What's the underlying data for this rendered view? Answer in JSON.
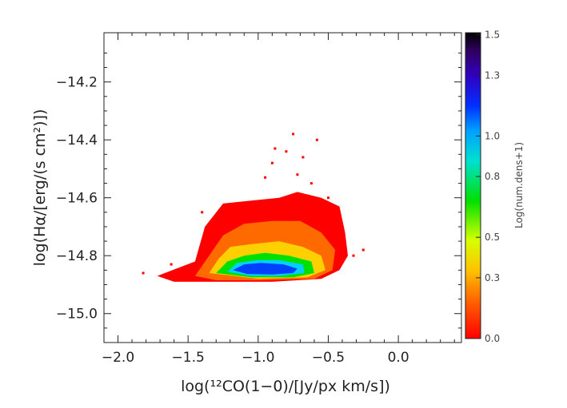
{
  "chart_data": {
    "type": "heatmap",
    "title": "",
    "xlabel": "log(¹²CO(1−0)/[Jy/px km/s])",
    "ylabel": "log(Hα/[erg/(s cm²)])",
    "x_ticks": [
      -2.0,
      -1.5,
      -1.0,
      -0.5,
      0.0
    ],
    "x_tick_labels": [
      "−2.0",
      "−1.5",
      "−1.0",
      "−0.5",
      "0.0"
    ],
    "y_ticks": [
      -15.0,
      -14.8,
      -14.6,
      -14.4,
      -14.2
    ],
    "y_tick_labels": [
      "−15.0",
      "−14.8",
      "−14.6",
      "−14.4",
      "−14.2"
    ],
    "xlim": [
      -2.1,
      0.45
    ],
    "ylim": [
      -15.1,
      -14.03
    ],
    "grid": false,
    "colorbar": {
      "label": "Log(num.dens+1)",
      "range": [
        0.0,
        1.51
      ],
      "ticks": [
        0.0,
        0.3,
        0.5,
        0.8,
        1.0,
        1.3,
        1.5
      ],
      "tick_labels": [
        "0.0",
        "0.3",
        "0.5",
        "0.8",
        "1.0",
        "1.3",
        "1.5"
      ],
      "colormap": "rainbow (red → orange → yellow → green → cyan → blue → purple → black)",
      "colors": [
        "#ff0000",
        "#ff8c00",
        "#ffff00",
        "#00e000",
        "#00d0ff",
        "#0040ff",
        "#2000a0",
        "#000000"
      ]
    },
    "density_regions": [
      {
        "level": 0.0,
        "color": "#ff0000",
        "polygon": [
          [
            -1.72,
            -14.87
          ],
          [
            -1.45,
            -14.82
          ],
          [
            -1.38,
            -14.7
          ],
          [
            -1.25,
            -14.62
          ],
          [
            -1.05,
            -14.61
          ],
          [
            -0.85,
            -14.6
          ],
          [
            -0.72,
            -14.58
          ],
          [
            -0.55,
            -14.6
          ],
          [
            -0.42,
            -14.63
          ],
          [
            -0.38,
            -14.72
          ],
          [
            -0.36,
            -14.8
          ],
          [
            -0.42,
            -14.85
          ],
          [
            -0.55,
            -14.88
          ],
          [
            -0.9,
            -14.89
          ],
          [
            -1.3,
            -14.89
          ],
          [
            -1.6,
            -14.89
          ]
        ]
      },
      {
        "level": 0.25,
        "color": "#ff6a00",
        "polygon": [
          [
            -1.45,
            -14.87
          ],
          [
            -1.35,
            -14.8
          ],
          [
            -1.25,
            -14.73
          ],
          [
            -1.1,
            -14.69
          ],
          [
            -0.9,
            -14.68
          ],
          [
            -0.7,
            -14.68
          ],
          [
            -0.55,
            -14.72
          ],
          [
            -0.45,
            -14.78
          ],
          [
            -0.47,
            -14.85
          ],
          [
            -0.6,
            -14.88
          ],
          [
            -1.0,
            -14.885
          ],
          [
            -1.3,
            -14.885
          ]
        ]
      },
      {
        "level": 0.45,
        "color": "#ffd000",
        "polygon": [
          [
            -1.35,
            -14.86
          ],
          [
            -1.28,
            -14.81
          ],
          [
            -1.2,
            -14.77
          ],
          [
            -1.05,
            -14.76
          ],
          [
            -0.85,
            -14.75
          ],
          [
            -0.68,
            -14.77
          ],
          [
            -0.55,
            -14.8
          ],
          [
            -0.52,
            -14.85
          ],
          [
            -0.65,
            -14.875
          ],
          [
            -1.0,
            -14.88
          ]
        ]
      },
      {
        "level": 0.7,
        "color": "#00e000",
        "polygon": [
          [
            -1.3,
            -14.86
          ],
          [
            -1.22,
            -14.82
          ],
          [
            -1.1,
            -14.8
          ],
          [
            -0.95,
            -14.79
          ],
          [
            -0.78,
            -14.8
          ],
          [
            -0.62,
            -14.82
          ],
          [
            -0.6,
            -14.86
          ],
          [
            -0.75,
            -14.875
          ],
          [
            -1.05,
            -14.875
          ]
        ]
      },
      {
        "level": 0.9,
        "color": "#00d0ff",
        "polygon": [
          [
            -1.22,
            -14.855
          ],
          [
            -1.15,
            -14.825
          ],
          [
            -1.0,
            -14.815
          ],
          [
            -0.85,
            -14.815
          ],
          [
            -0.68,
            -14.83
          ],
          [
            -0.67,
            -14.86
          ],
          [
            -0.85,
            -14.87
          ],
          [
            -1.05,
            -14.87
          ]
        ]
      },
      {
        "level": 1.1,
        "color": "#0040ff",
        "polygon": [
          [
            -1.18,
            -14.85
          ],
          [
            -1.1,
            -14.83
          ],
          [
            -0.98,
            -14.825
          ],
          [
            -0.82,
            -14.83
          ],
          [
            -0.72,
            -14.845
          ],
          [
            -0.75,
            -14.86
          ],
          [
            -0.9,
            -14.865
          ],
          [
            -1.08,
            -14.863
          ]
        ]
      }
    ],
    "outlier_points": [
      [
        -0.88,
        -14.43
      ],
      [
        -0.8,
        -14.44
      ],
      [
        -0.75,
        -14.38
      ],
      [
        -0.68,
        -14.46
      ],
      [
        -0.58,
        -14.4
      ],
      [
        -0.72,
        -14.52
      ],
      [
        -0.9,
        -14.48
      ],
      [
        -0.62,
        -14.55
      ],
      [
        -0.5,
        -14.6
      ],
      [
        -0.25,
        -14.78
      ],
      [
        -1.82,
        -14.86
      ],
      [
        -1.62,
        -14.83
      ],
      [
        -1.4,
        -14.65
      ],
      [
        -0.32,
        -14.8
      ],
      [
        -0.95,
        -14.53
      ]
    ]
  }
}
